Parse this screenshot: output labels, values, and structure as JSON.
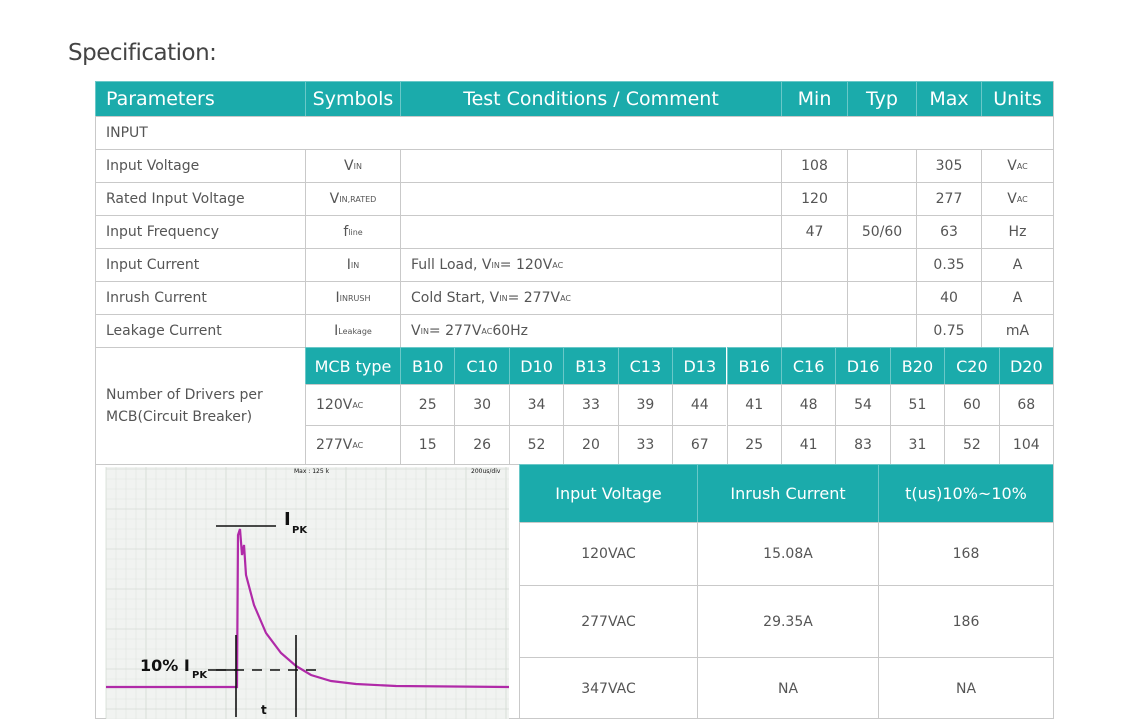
{
  "title": "Specification:",
  "table": {
    "header": [
      "Parameters",
      "Symbols",
      "Test Conditions / Comment",
      "Min",
      "Typ",
      "Max",
      "Units"
    ],
    "section": "INPUT",
    "rows": [
      {
        "parameter": "Input Voltage",
        "symbol": {
          "base": "V",
          "sub": "IN"
        },
        "min": 108,
        "max": 305,
        "units": {
          "base": "V",
          "sub": "AC"
        }
      },
      {
        "parameter": "Rated Input Voltage",
        "symbol": {
          "base": "V",
          "sub": "IN,RATED"
        },
        "min": 120,
        "max": 277,
        "units": {
          "base": "V",
          "sub": "AC"
        }
      },
      {
        "parameter": "Input Frequency",
        "symbol": {
          "base": "f",
          "sub": "line"
        },
        "min": 47,
        "typ": "50/60",
        "max": 63,
        "units": "Hz"
      },
      {
        "parameter": "Input Current",
        "symbol": {
          "base": "I",
          "sub": "IN"
        },
        "conditions": [
          {
            "text": "Full Load, V"
          },
          {
            "sub": "IN"
          },
          {
            "text": " = 120V"
          },
          {
            "sub": "AC"
          }
        ],
        "max": 0.35,
        "units": "A"
      },
      {
        "parameter": "Inrush Current",
        "symbol": {
          "base": "I",
          "sub": "INRUSH"
        },
        "conditions": [
          {
            "text": "Cold Start, V"
          },
          {
            "sub": "IN"
          },
          {
            "text": " = 277V"
          },
          {
            "sub": "AC"
          }
        ],
        "max": 40,
        "units": "A"
      },
      {
        "parameter": "Leakage Current",
        "symbol": {
          "base": "I",
          "sub": "Leakage"
        },
        "conditions": [
          {
            "text": "V"
          },
          {
            "sub": "IN"
          },
          {
            "text": " = 277V"
          },
          {
            "sub": "AC"
          },
          {
            "text": " 60Hz"
          }
        ],
        "max": 0.75,
        "units": "mA"
      }
    ]
  },
  "mcb": {
    "label": "Number of Drivers per MCB(Circuit Breaker)",
    "header": "MCB type",
    "types": [
      "B10",
      "C10",
      "D10",
      "B13",
      "C13",
      "D13",
      "B16",
      "C16",
      "D16",
      "B20",
      "C20",
      "D20"
    ],
    "rows": [
      {
        "voltage": {
          "base": "120V",
          "sub": "AC"
        },
        "counts": [
          25,
          30,
          34,
          33,
          39,
          44,
          41,
          48,
          54,
          51,
          60,
          68
        ]
      },
      {
        "voltage": {
          "base": "277V",
          "sub": "AC"
        },
        "counts": [
          15,
          26,
          52,
          20,
          33,
          67,
          25,
          41,
          83,
          31,
          52,
          104
        ]
      }
    ]
  },
  "waveform": {
    "top_left": "Max : 125 k",
    "top_right": "200us/div",
    "peak": {
      "base": "I",
      "sub": "PK"
    },
    "ten_percent": {
      "base": "10% I",
      "sub": "PK"
    },
    "t": "t"
  },
  "inrush_table": {
    "header": [
      "Input Voltage",
      "Inrush Current",
      "t(us)10%~10%"
    ],
    "rows": [
      [
        "120VAC",
        "15.08A",
        168
      ],
      [
        "277VAC",
        "29.35A",
        186
      ],
      [
        "347VAC",
        "NA",
        "NA"
      ]
    ]
  }
}
